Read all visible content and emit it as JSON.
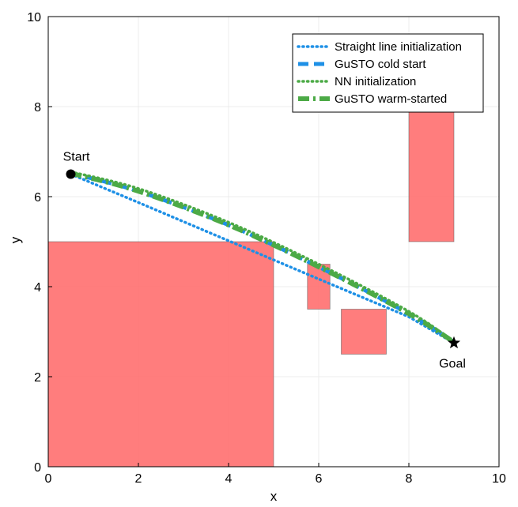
{
  "chart_data": {
    "type": "line",
    "title": "",
    "xlabel": "x",
    "ylabel": "y",
    "xlim": [
      0,
      10
    ],
    "ylim": [
      0,
      10
    ],
    "xticks": [
      "0",
      "2",
      "4",
      "6",
      "8",
      "10"
    ],
    "yticks": [
      "0",
      "2",
      "4",
      "6",
      "8",
      "10"
    ],
    "grid": true,
    "legend_position": "top-right",
    "obstacles": [
      {
        "x0": 0,
        "x1": 5,
        "y0": 0,
        "y1": 5
      },
      {
        "x0": 5.75,
        "x1": 6.25,
        "y0": 3.5,
        "y1": 4.5
      },
      {
        "x0": 6.5,
        "x1": 7.5,
        "y0": 2.5,
        "y1": 3.5
      },
      {
        "x0": 8,
        "x1": 9,
        "y0": 5,
        "y1": 8
      }
    ],
    "obstacle_color": "#ff6666",
    "series": [
      {
        "name": "Straight line initialization",
        "style": "dotted",
        "color": "#1e90e6",
        "x": [
          0.5,
          2,
          4,
          6,
          8,
          9
        ],
        "y": [
          6.5,
          5.87,
          5.02,
          4.17,
          3.33,
          2.75
        ]
      },
      {
        "name": "GuSTO cold start",
        "style": "dashed",
        "color": "#1e90e6",
        "x": [
          0.5,
          2,
          4,
          6,
          8,
          9
        ],
        "y": [
          6.52,
          6.12,
          5.37,
          4.44,
          3.4,
          2.77
        ]
      },
      {
        "name": "NN initialization",
        "style": "dotted",
        "color": "#4caa46",
        "x": [
          0.5,
          2,
          4,
          6,
          8,
          9
        ],
        "y": [
          6.55,
          6.18,
          5.43,
          4.5,
          3.45,
          2.78
        ]
      },
      {
        "name": "GuSTO warm-started",
        "style": "dashdot",
        "color": "#4caa46",
        "x": [
          0.5,
          2,
          4,
          6,
          8,
          9
        ],
        "y": [
          6.52,
          6.12,
          5.37,
          4.44,
          3.4,
          2.77
        ]
      }
    ],
    "markers": [
      {
        "label": "Start",
        "shape": "circle",
        "x": 0.5,
        "y": 6.5
      },
      {
        "label": "Goal",
        "shape": "star",
        "x": 9,
        "y": 2.75
      }
    ]
  }
}
